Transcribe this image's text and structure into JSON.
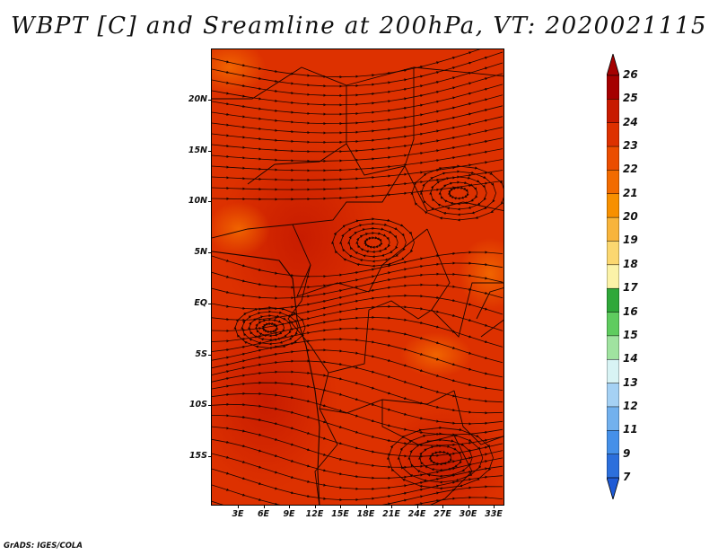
{
  "title": "WBPT [C] and Sreamline at 200hPa, VT: 2020021115",
  "credit": "GrADS: IGES/COLA",
  "map": {
    "field": "WBPT [C]",
    "level": "200hPa",
    "valid_time": "2020021115",
    "y_ticks": [
      "20N",
      "15N",
      "10N",
      "5N",
      "EQ",
      "5S",
      "10S",
      "15S"
    ],
    "x_ticks": [
      "3E",
      "6E",
      "9E",
      "12E",
      "15E",
      "18E",
      "21E",
      "24E",
      "27E",
      "30E",
      "33E"
    ],
    "dominant_range": "23-25",
    "cyclonic_centers": [
      "10N 27E",
      "7N 17E",
      "3S 7E",
      "16S 27E"
    ]
  },
  "colorbar": {
    "labels": [
      "26",
      "25",
      "24",
      "23",
      "22",
      "21",
      "20",
      "19",
      "18",
      "17",
      "16",
      "15",
      "14",
      "13",
      "12",
      "11",
      "9",
      "7"
    ],
    "colors": [
      "#a50000",
      "#c81a00",
      "#dd3100",
      "#eb4d00",
      "#f26b00",
      "#f79000",
      "#f8b43b",
      "#fbd770",
      "#fbf2a8",
      "#2fa83a",
      "#5fcc5f",
      "#a0e3a0",
      "#d8f3f4",
      "#a5d1f4",
      "#72b1ee",
      "#4590e9",
      "#2c6fdc"
    ],
    "top_cap_color": "#a50000",
    "bottom_cap_color": "#1f5bd6"
  }
}
